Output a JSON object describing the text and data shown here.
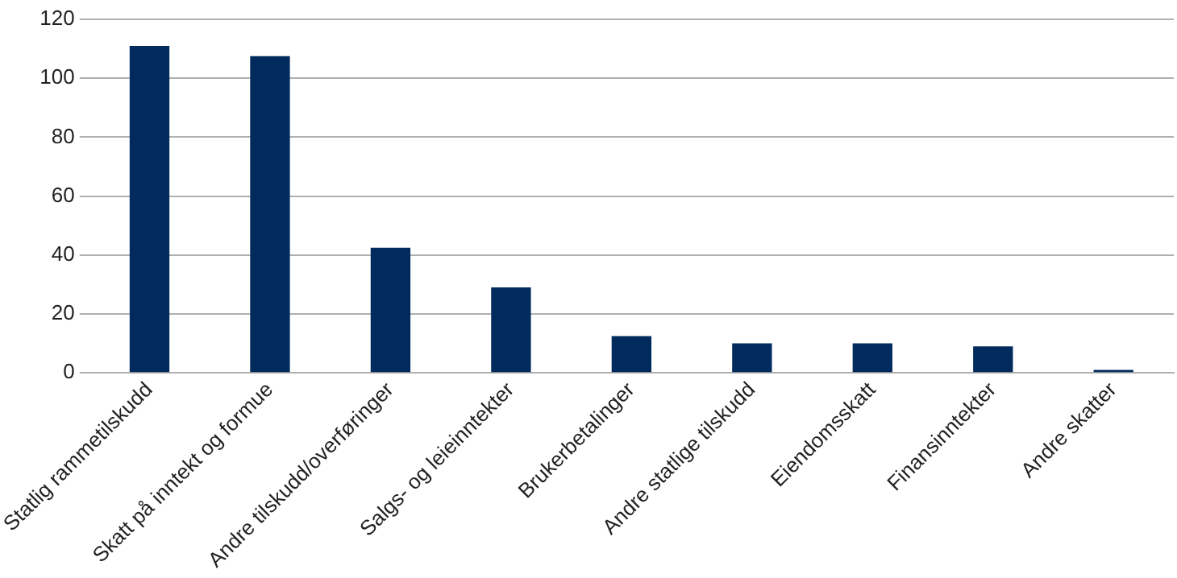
{
  "chart_data": {
    "type": "bar",
    "categories": [
      "Statlig rammetilskudd",
      "Skatt på inntekt og formue",
      "Andre tilskudd/overføringer",
      "Salgs- og leieinntekter",
      "Brukerbetalinger",
      "Andre statlige tilskudd",
      "Eiendomsskatt",
      "Finansinntekter",
      "Andre skatter"
    ],
    "values": [
      111,
      107.5,
      42.5,
      29,
      12.5,
      10,
      10,
      9,
      1
    ],
    "color": "#002b5c",
    "ylim": [
      0,
      120
    ],
    "yticks": [
      0,
      20,
      40,
      60,
      80,
      100,
      120
    ],
    "grid": "y",
    "legend": false
  }
}
